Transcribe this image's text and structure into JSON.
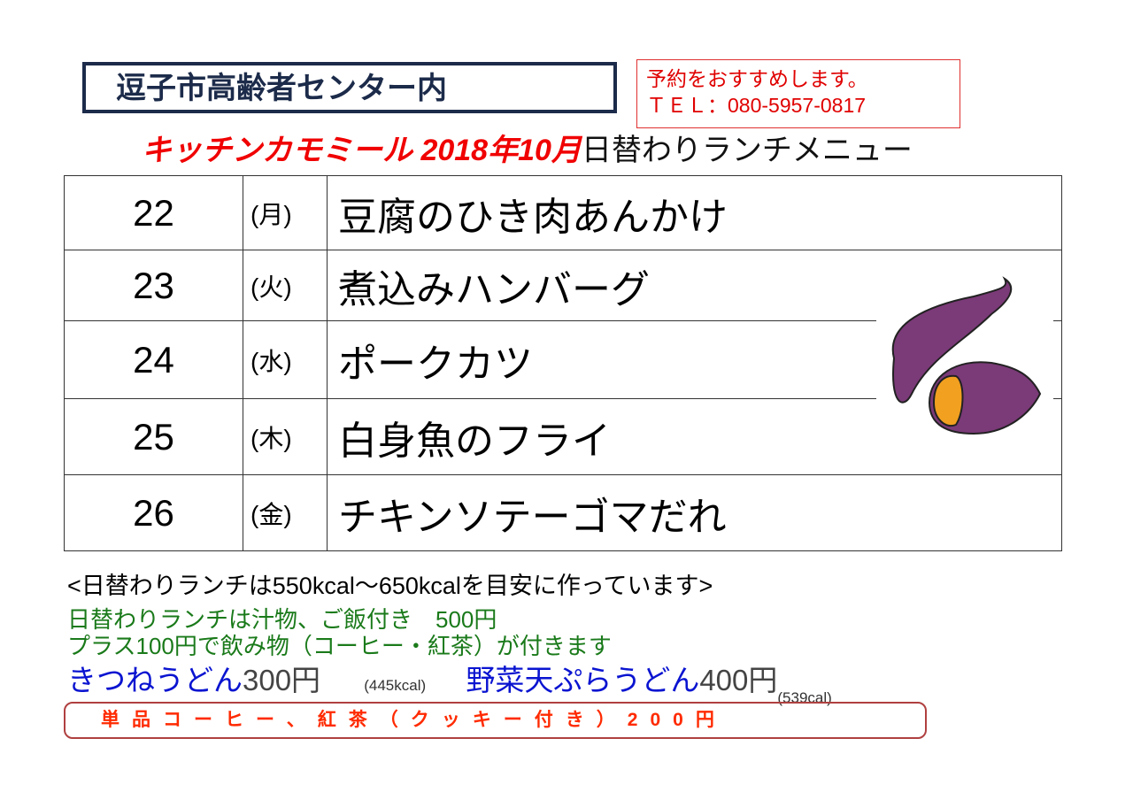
{
  "header": {
    "venue": "逗子市高齢者センター内",
    "reservation_note": "予約をおすすめします。",
    "phone": "ＴＥＬ：080-5957-0817",
    "title_shop": "キッチンカモミール 2018年10月",
    "title_menu": "日替わりランチメニュー"
  },
  "menu": [
    {
      "day": "22",
      "weekday": "(月)",
      "dish": "豆腐のひき肉あんかけ"
    },
    {
      "day": "23",
      "weekday": "(火)",
      "dish": "煮込みハンバーグ"
    },
    {
      "day": "24",
      "weekday": "(水)",
      "dish": "ポークカツ"
    },
    {
      "day": "25",
      "weekday": "(木)",
      "dish": "白身魚のフライ"
    },
    {
      "day": "26",
      "weekday": "(金)",
      "dish": "チキンソテーゴマだれ"
    }
  ],
  "footer": {
    "calorie_note": "<日替わりランチは550kcal～650kcalを目安に作っています>",
    "lunch_price": "日替わりランチは汁物、ご飯付き　500円",
    "drink_addon": "プラス100円で飲み物（コーヒー・紅茶）が付きます",
    "kitsune_name": "きつねうどん",
    "kitsune_price": "300円",
    "kitsune_kcal": "(445kcal)",
    "tempura_name": "野菜天ぷらうどん",
    "tempura_price": "400円",
    "tempura_kcal": "(539cal)",
    "single_drink": "単品コーヒー、紅茶（クッキー付き）200円"
  },
  "illustration": "sweet-potato",
  "colors": {
    "title_red": "#f00000",
    "navy": "#1c2b4a",
    "green": "#1a7a1a",
    "blue": "#0a14d0",
    "potato": "#7b3a78",
    "flesh": "#f2a020"
  }
}
